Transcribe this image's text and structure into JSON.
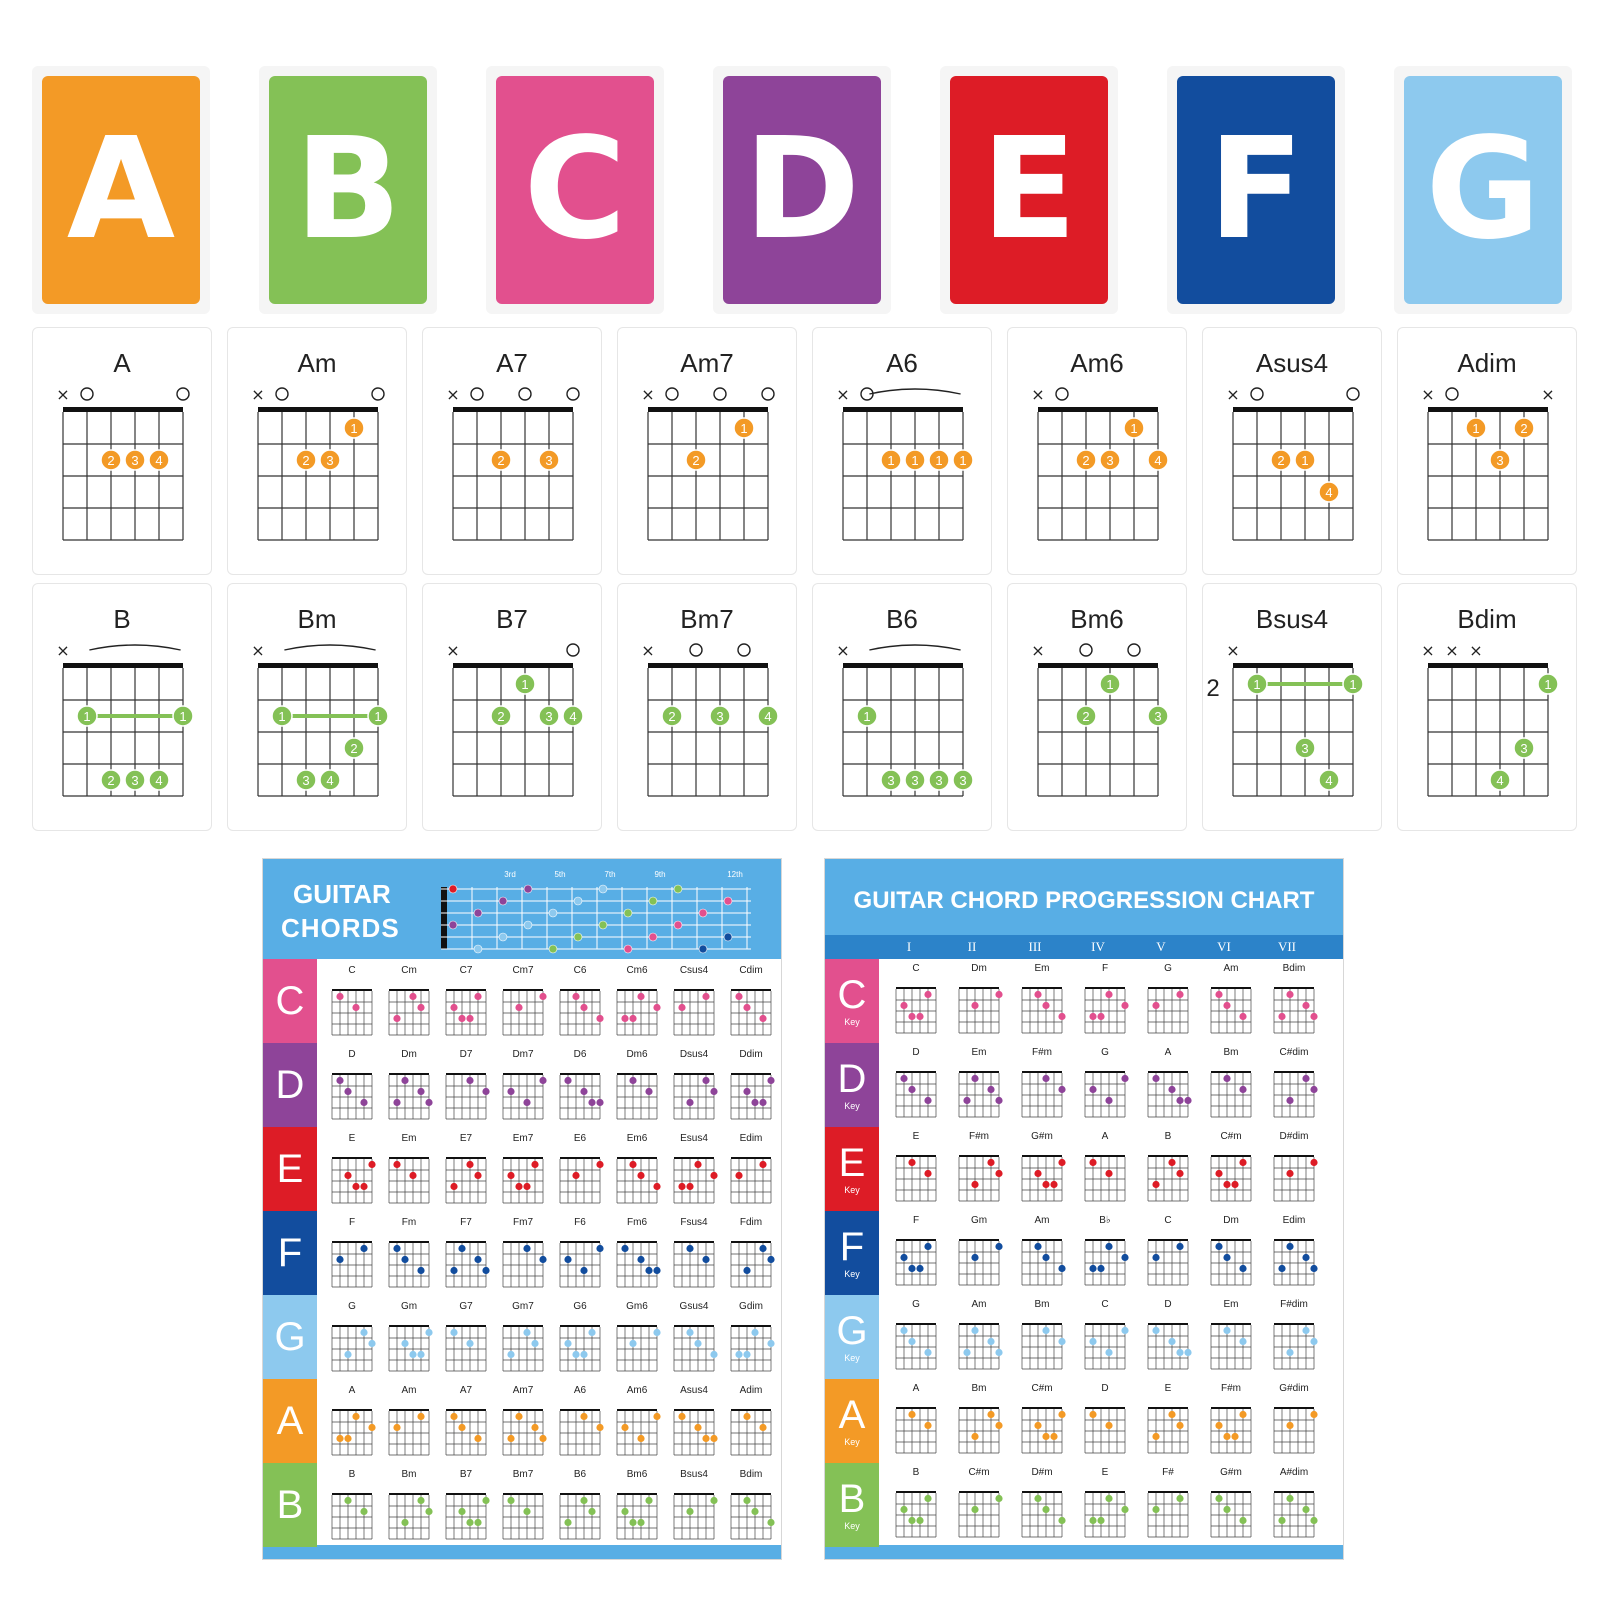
{
  "letters": [
    {
      "label": "A",
      "color": "#F39A26"
    },
    {
      "label": "B",
      "color": "#84C156"
    },
    {
      "label": "C",
      "color": "#E2508E"
    },
    {
      "label": "D",
      "color": "#8E4499"
    },
    {
      "label": "E",
      "color": "#DD1C26"
    },
    {
      "label": "F",
      "color": "#124D9E"
    },
    {
      "label": "G",
      "color": "#8DC9EE"
    }
  ],
  "chord_rows": [
    {
      "color": "#F39A26",
      "cards": [
        {
          "name": "A",
          "marks": [
            "x",
            "o",
            "",
            "",
            "",
            "o"
          ],
          "barre": false,
          "fret": "",
          "dots": [
            [
              1,
              2,
              "2"
            ],
            [
              1,
              3,
              "3"
            ],
            [
              1,
              4,
              "4"
            ]
          ]
        },
        {
          "name": "Am",
          "marks": [
            "x",
            "o",
            "",
            "",
            "",
            "o"
          ],
          "barre": false,
          "fret": "",
          "dots": [
            [
              0,
              4,
              "1"
            ],
            [
              1,
              2,
              "2"
            ],
            [
              1,
              3,
              "3"
            ]
          ]
        },
        {
          "name": "A7",
          "marks": [
            "x",
            "o",
            "",
            "o",
            "",
            "o"
          ],
          "barre": false,
          "fret": "",
          "dots": [
            [
              1,
              2,
              "2"
            ],
            [
              1,
              4,
              "3"
            ]
          ]
        },
        {
          "name": "Am7",
          "marks": [
            "x",
            "o",
            "",
            "o",
            "",
            "o"
          ],
          "barre": false,
          "fret": "",
          "dots": [
            [
              0,
              4,
              "1"
            ],
            [
              1,
              2,
              "2"
            ]
          ]
        },
        {
          "name": "A6",
          "marks": [
            "x",
            "o",
            "",
            "",
            "",
            ""
          ],
          "barre": true,
          "fret": "",
          "dots": [
            [
              1,
              2,
              "1"
            ],
            [
              1,
              3,
              "1"
            ],
            [
              1,
              4,
              "1"
            ],
            [
              1,
              5,
              "1"
            ]
          ]
        },
        {
          "name": "Am6",
          "marks": [
            "x",
            "o",
            "",
            "",
            "",
            ""
          ],
          "barre": false,
          "fret": "",
          "dots": [
            [
              0,
              4,
              "1"
            ],
            [
              1,
              2,
              "2"
            ],
            [
              1,
              3,
              "3"
            ],
            [
              1,
              5,
              "4"
            ]
          ]
        },
        {
          "name": "Asus4",
          "marks": [
            "x",
            "o",
            "",
            "",
            "",
            "o"
          ],
          "barre": false,
          "fret": "",
          "dots": [
            [
              1,
              2,
              "2"
            ],
            [
              1,
              3,
              "1"
            ],
            [
              2,
              4,
              "4"
            ]
          ]
        },
        {
          "name": "Adim",
          "marks": [
            "x",
            "o",
            "",
            "",
            "",
            "x"
          ],
          "barre": false,
          "fret": "",
          "dots": [
            [
              0,
              2,
              "1"
            ],
            [
              0,
              4,
              "2"
            ],
            [
              1,
              3,
              "3"
            ]
          ]
        }
      ]
    },
    {
      "color": "#84C156",
      "cards": [
        {
          "name": "B",
          "marks": [
            "x",
            "",
            "",
            "",
            "",
            ""
          ],
          "barre": true,
          "fret": "",
          "dots": [
            [
              1,
              1,
              "1"
            ],
            [
              1,
              5,
              "1"
            ],
            [
              3,
              2,
              "2"
            ],
            [
              3,
              3,
              "3"
            ],
            [
              3,
              4,
              "4"
            ]
          ],
          "bar": [
            1,
            1,
            5
          ]
        },
        {
          "name": "Bm",
          "marks": [
            "x",
            "",
            "",
            "",
            "",
            ""
          ],
          "barre": true,
          "fret": "",
          "dots": [
            [
              1,
              1,
              "1"
            ],
            [
              1,
              5,
              "1"
            ],
            [
              2,
              4,
              "2"
            ],
            [
              3,
              2,
              "3"
            ],
            [
              3,
              3,
              "4"
            ]
          ],
          "bar": [
            1,
            1,
            5
          ]
        },
        {
          "name": "B7",
          "marks": [
            "x",
            "",
            "",
            "",
            "",
            "o"
          ],
          "barre": false,
          "fret": "",
          "dots": [
            [
              0,
              3,
              "1"
            ],
            [
              1,
              2,
              "2"
            ],
            [
              1,
              4,
              "3"
            ],
            [
              1,
              5,
              "4"
            ]
          ]
        },
        {
          "name": "Bm7",
          "marks": [
            "x",
            "",
            "o",
            "",
            "o",
            ""
          ],
          "barre": false,
          "fret": "",
          "dots": [
            [
              1,
              1,
              "2"
            ],
            [
              1,
              3,
              "3"
            ],
            [
              1,
              5,
              "4"
            ]
          ]
        },
        {
          "name": "B6",
          "marks": [
            "x",
            "",
            "",
            "",
            "",
            ""
          ],
          "barre": true,
          "fret": "",
          "dots": [
            [
              1,
              1,
              "1"
            ],
            [
              3,
              2,
              "3"
            ],
            [
              3,
              3,
              "3"
            ],
            [
              3,
              4,
              "3"
            ],
            [
              3,
              5,
              "3"
            ]
          ]
        },
        {
          "name": "Bm6",
          "marks": [
            "x",
            "",
            "o",
            "",
            "o",
            ""
          ],
          "barre": false,
          "fret": "",
          "dots": [
            [
              0,
              3,
              "1"
            ],
            [
              1,
              2,
              "2"
            ],
            [
              1,
              5,
              "3"
            ]
          ]
        },
        {
          "name": "Bsus4",
          "marks": [
            "x",
            "",
            "",
            "",
            "",
            ""
          ],
          "barre": false,
          "fret": "2",
          "dots": [
            [
              0,
              1,
              "1"
            ],
            [
              0,
              5,
              "1"
            ],
            [
              2,
              3,
              "3"
            ],
            [
              3,
              4,
              "4"
            ]
          ],
          "bar": [
            0,
            1,
            5
          ]
        },
        {
          "name": "Bdim",
          "marks": [
            "x",
            "x",
            "x",
            "",
            "",
            ""
          ],
          "barre": false,
          "fret": "",
          "dots": [
            [
              0,
              5,
              "1"
            ],
            [
              2,
              4,
              "3"
            ],
            [
              3,
              3,
              "4"
            ]
          ]
        }
      ]
    }
  ],
  "poster1": {
    "title_line1": "GUITAR",
    "title_line2": "CHORDS",
    "fret_numbers": [
      "3rd",
      "5th",
      "7th",
      "9th",
      "12th"
    ],
    "rows": [
      {
        "key": "C",
        "color": "#E2508E",
        "chords": [
          "C",
          "Cm",
          "C7",
          "Cm7",
          "C6",
          "Cm6",
          "Csus4",
          "Cdim"
        ]
      },
      {
        "key": "D",
        "color": "#8E4499",
        "chords": [
          "D",
          "Dm",
          "D7",
          "Dm7",
          "D6",
          "Dm6",
          "Dsus4",
          "Ddim"
        ]
      },
      {
        "key": "E",
        "color": "#DD1C26",
        "chords": [
          "E",
          "Em",
          "E7",
          "Em7",
          "E6",
          "Em6",
          "Esus4",
          "Edim"
        ]
      },
      {
        "key": "F",
        "color": "#124D9E",
        "chords": [
          "F",
          "Fm",
          "F7",
          "Fm7",
          "F6",
          "Fm6",
          "Fsus4",
          "Fdim"
        ]
      },
      {
        "key": "G",
        "color": "#8DC9EE",
        "chords": [
          "G",
          "Gm",
          "G7",
          "Gm7",
          "G6",
          "Gm6",
          "Gsus4",
          "Gdim"
        ]
      },
      {
        "key": "A",
        "color": "#F39A26",
        "chords": [
          "A",
          "Am",
          "A7",
          "Am7",
          "A6",
          "Am6",
          "Asus4",
          "Adim"
        ]
      },
      {
        "key": "B",
        "color": "#84C156",
        "chords": [
          "B",
          "Bm",
          "B7",
          "Bm7",
          "B6",
          "Bm6",
          "Bsus4",
          "Bdim"
        ]
      }
    ]
  },
  "poster2": {
    "title": "GUITAR CHORD PROGRESSION CHART",
    "numerals": [
      "I",
      "II",
      "III",
      "IV",
      "V",
      "VI",
      "VII"
    ],
    "key_label": "Key",
    "rows": [
      {
        "key": "C",
        "color": "#E2508E",
        "chords": [
          "C",
          "Dm",
          "Em",
          "F",
          "G",
          "Am",
          "Bdim"
        ]
      },
      {
        "key": "D",
        "color": "#8E4499",
        "chords": [
          "D",
          "Em",
          "F#m",
          "G",
          "A",
          "Bm",
          "C#dim"
        ]
      },
      {
        "key": "E",
        "color": "#DD1C26",
        "chords": [
          "E",
          "F#m",
          "G#m",
          "A",
          "B",
          "C#m",
          "D#dim"
        ]
      },
      {
        "key": "F",
        "color": "#124D9E",
        "chords": [
          "F",
          "Gm",
          "Am",
          "B♭",
          "C",
          "Dm",
          "Edim"
        ]
      },
      {
        "key": "G",
        "color": "#8DC9EE",
        "chords": [
          "G",
          "Am",
          "Bm",
          "C",
          "D",
          "Em",
          "F#dim"
        ]
      },
      {
        "key": "A",
        "color": "#F39A26",
        "chords": [
          "A",
          "Bm",
          "C#m",
          "D",
          "E",
          "F#m",
          "G#dim"
        ]
      },
      {
        "key": "B",
        "color": "#84C156",
        "chords": [
          "B",
          "C#m",
          "D#m",
          "E",
          "F#",
          "G#m",
          "A#dim"
        ]
      }
    ]
  }
}
